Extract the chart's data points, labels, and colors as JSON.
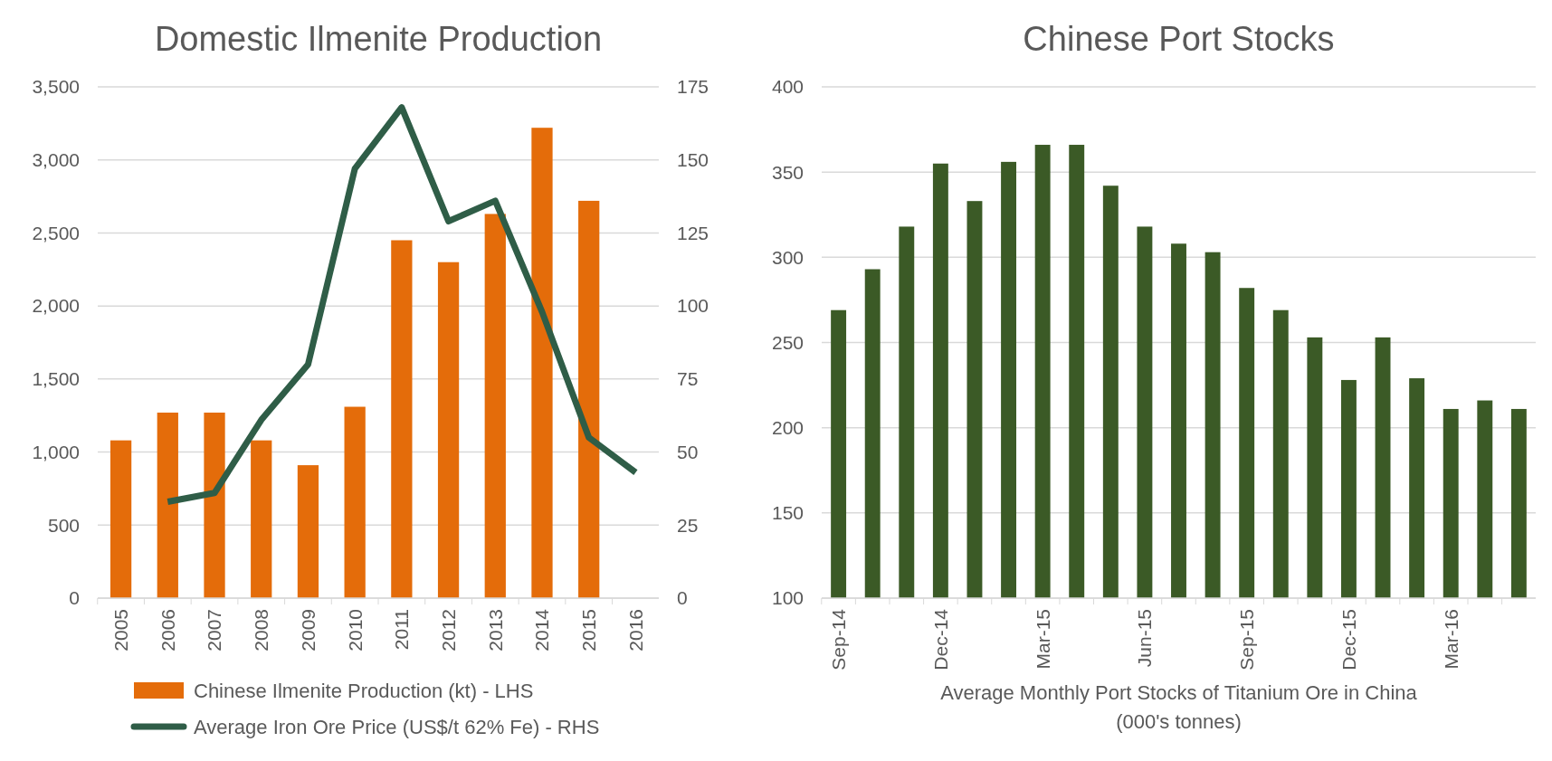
{
  "chart_data": [
    {
      "type": "bar",
      "title": "Domestic Ilmenite Production",
      "categories": [
        "2005",
        "2006",
        "2007",
        "2008",
        "2009",
        "2010",
        "2011",
        "2012",
        "2013",
        "2014",
        "2015",
        "2016"
      ],
      "series": [
        {
          "name": "Chinese Ilmenite Production (kt) - LHS",
          "color": "#e46c0a",
          "values": [
            1080,
            1270,
            1270,
            1080,
            910,
            1310,
            2450,
            2300,
            2630,
            3220,
            2720,
            null
          ]
        },
        {
          "name": "Average Iron Ore Price (US$/t 62% Fe) - RHS",
          "type": "line",
          "axis": "y2",
          "color": "#2f5d47",
          "values": [
            null,
            33,
            36,
            61,
            80,
            147,
            168,
            129,
            136,
            98,
            55,
            43
          ]
        }
      ],
      "ylim": [
        0,
        3500
      ],
      "yticks": [
        0,
        500,
        {
          "value": 1000,
          "label": "1,000"
        },
        {
          "value": 1500,
          "label": "1,500"
        },
        {
          "value": 2000,
          "label": "2,000"
        },
        {
          "value": 2500,
          "label": "2,500"
        },
        {
          "value": 3000,
          "label": "3,000"
        },
        {
          "value": 3500,
          "label": "3,500"
        }
      ],
      "y2lim": [
        0,
        175
      ],
      "y2ticks": [
        0,
        25,
        50,
        75,
        100,
        125,
        150,
        175
      ],
      "grid": "y",
      "legend": "bottom",
      "marker": "none",
      "line_style": "solid"
    },
    {
      "type": "bar",
      "title": "Chinese Port Stocks",
      "xlabel": "Average Monthly Port Stocks of Titanium Ore in China (000's tonnes)",
      "categories": [
        "Sep-14",
        null,
        null,
        "Dec-14",
        null,
        null,
        "Mar-15",
        null,
        null,
        "Jun-15",
        null,
        null,
        "Sep-15",
        null,
        null,
        "Dec-15",
        null,
        null,
        "Mar-16",
        null,
        null
      ],
      "series": [
        {
          "color": "#3b5a26",
          "values": [
            269,
            293,
            318,
            355,
            333,
            356,
            366,
            366,
            342,
            318,
            308,
            303,
            282,
            269,
            253,
            228,
            253,
            229,
            211,
            216,
            211
          ]
        }
      ],
      "ylim": [
        100,
        400
      ],
      "yticks": [
        100,
        150,
        200,
        250,
        300,
        350,
        400
      ],
      "grid": "y",
      "legend": false
    }
  ]
}
